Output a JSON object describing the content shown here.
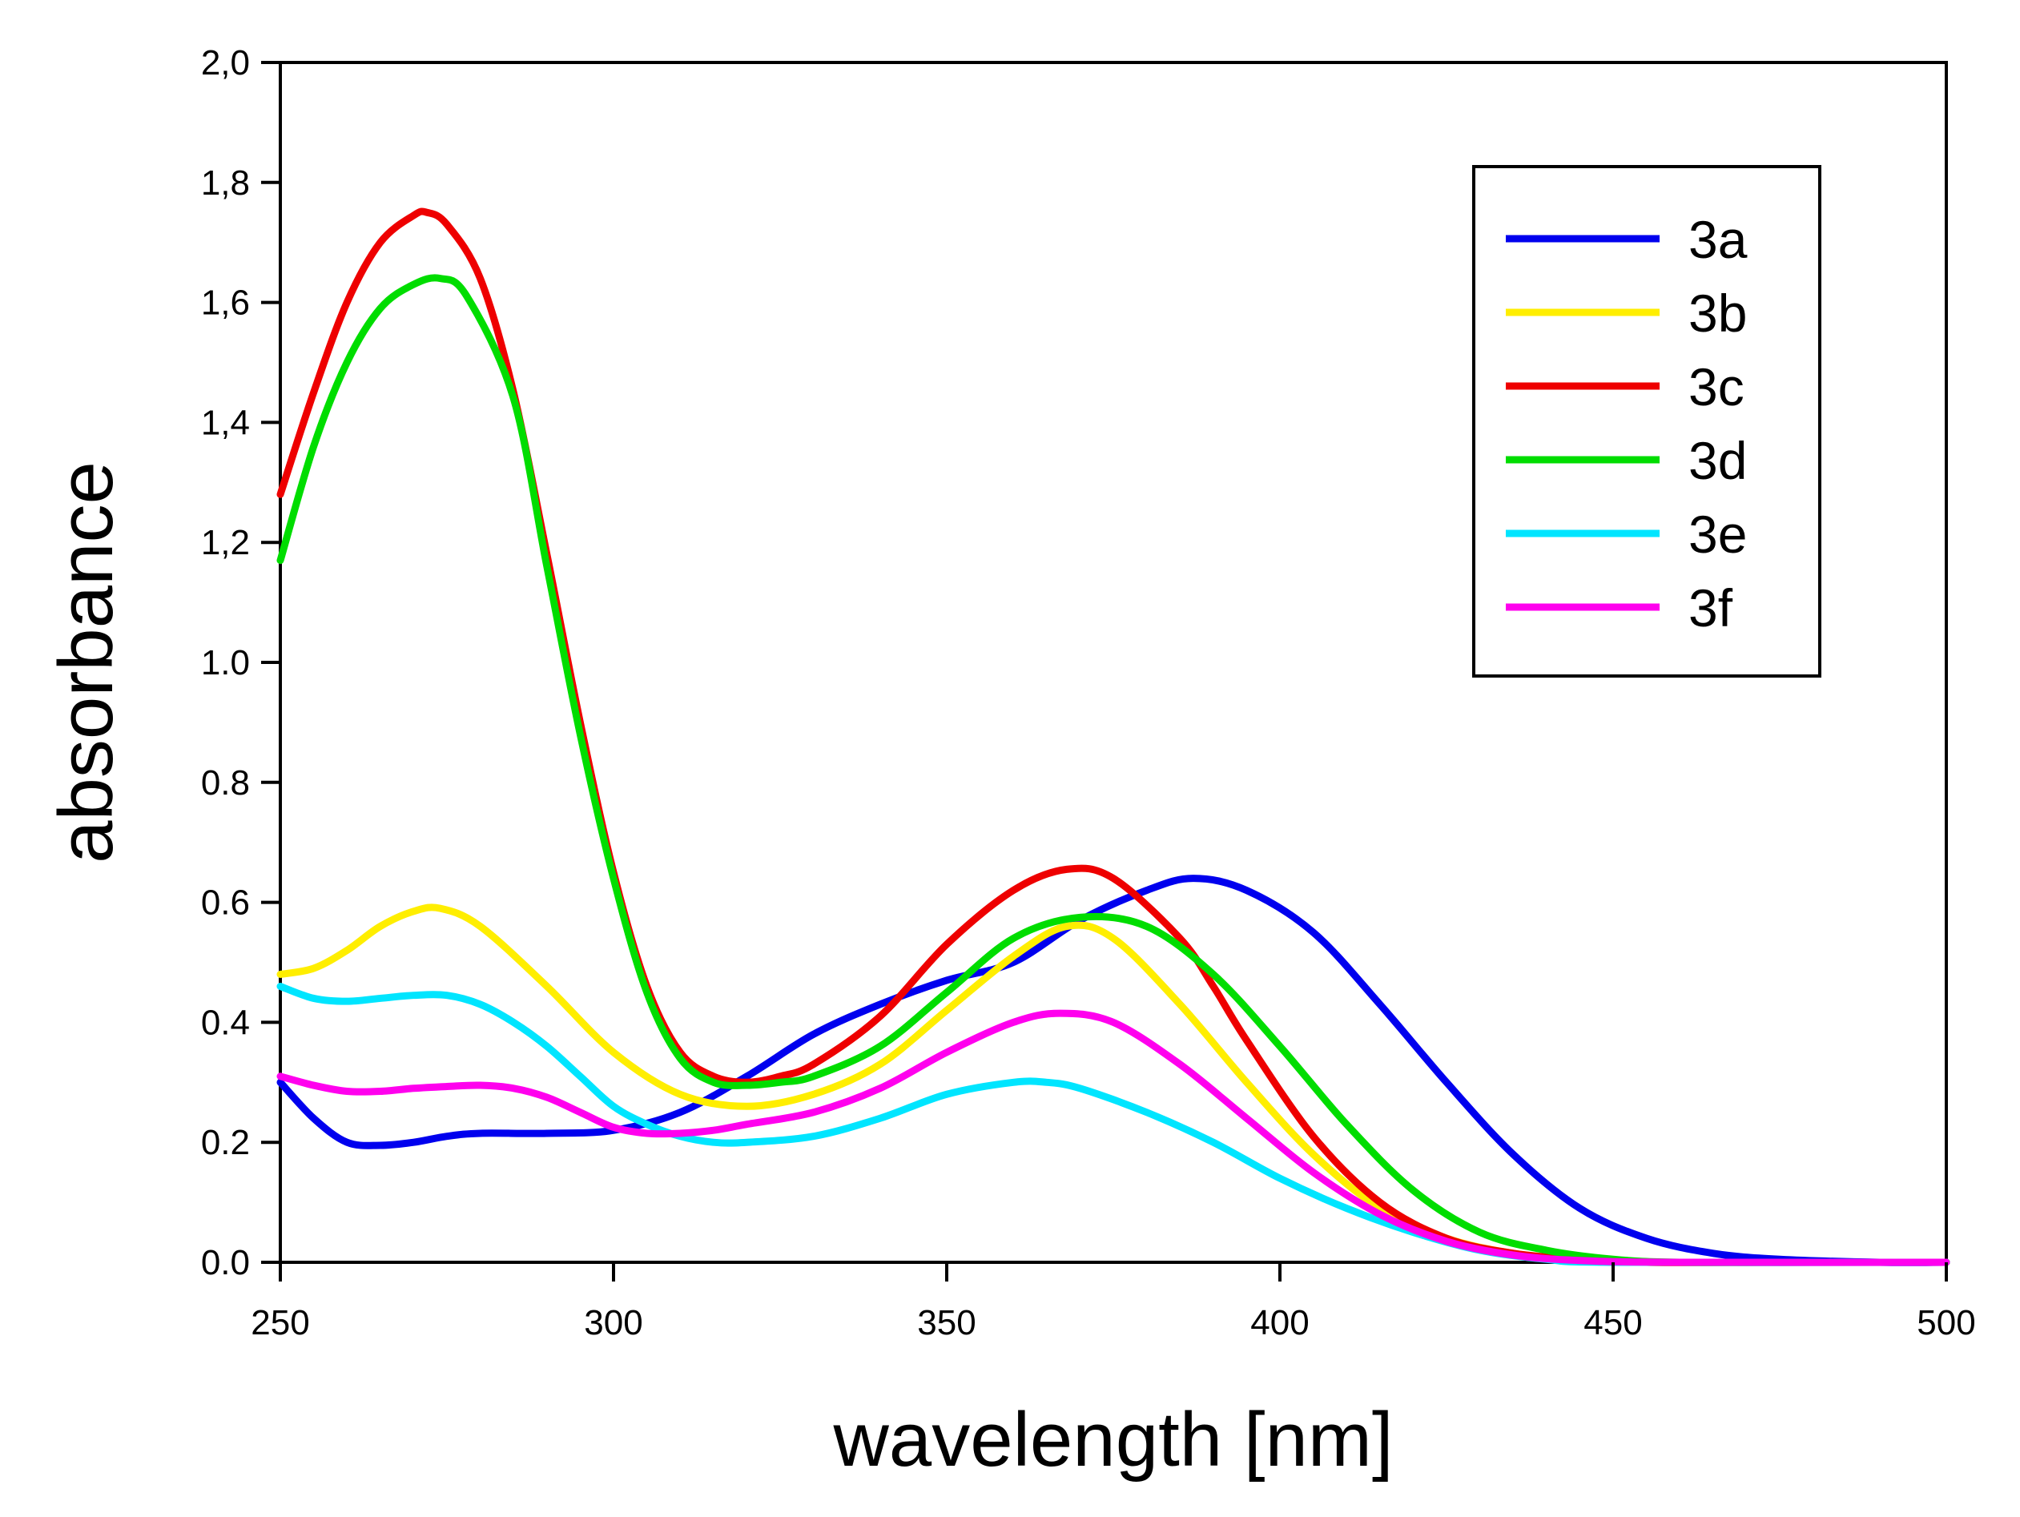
{
  "chart_data": {
    "type": "line",
    "title": "",
    "xlabel": "wavelength [nm]",
    "ylabel": "absorbance",
    "xlim": [
      250,
      500
    ],
    "ylim": [
      0.0,
      2.0
    ],
    "xticks": [
      250,
      300,
      350,
      400,
      450,
      500
    ],
    "xtick_labels": [
      "250",
      "300",
      "350",
      "400",
      "450",
      "500"
    ],
    "yticks": [
      0.0,
      0.2,
      0.4,
      0.6,
      0.8,
      1.0,
      1.2,
      1.4,
      1.6,
      1.8,
      2.0
    ],
    "ytick_labels": [
      "0.0",
      "0.2",
      "0.4",
      "0.6",
      "0.8",
      "1.0",
      "1,2",
      "1,4",
      "1,6",
      "1,8",
      "2,0"
    ],
    "grid": false,
    "legend_position": "top-right",
    "series": [
      {
        "name": "3a",
        "color": "#0000ee",
        "x": [
          250,
          255,
          260,
          265,
          270,
          275,
          280,
          290,
          300,
          310,
          320,
          330,
          340,
          350,
          360,
          370,
          380,
          387,
          395,
          405,
          415,
          425,
          435,
          445,
          455,
          465,
          475,
          490,
          500
        ],
        "y": [
          0.3,
          0.24,
          0.2,
          0.195,
          0.2,
          0.21,
          0.215,
          0.215,
          0.22,
          0.25,
          0.31,
          0.38,
          0.43,
          0.47,
          0.5,
          0.57,
          0.62,
          0.64,
          0.62,
          0.55,
          0.43,
          0.3,
          0.18,
          0.09,
          0.04,
          0.015,
          0.005,
          0.0,
          0.0
        ]
      },
      {
        "name": "3b",
        "color": "#ffee00",
        "x": [
          250,
          255,
          260,
          265,
          270,
          274,
          280,
          290,
          300,
          310,
          320,
          330,
          340,
          350,
          360,
          368,
          375,
          385,
          395,
          405,
          415,
          425,
          435,
          445,
          455,
          465,
          480,
          500
        ],
        "y": [
          0.48,
          0.49,
          0.52,
          0.56,
          0.585,
          0.59,
          0.56,
          0.46,
          0.35,
          0.28,
          0.26,
          0.28,
          0.33,
          0.42,
          0.51,
          0.56,
          0.54,
          0.43,
          0.3,
          0.18,
          0.09,
          0.04,
          0.015,
          0.005,
          0.0,
          0.0,
          0.0,
          0.0
        ]
      },
      {
        "name": "3c",
        "color": "#ee0000",
        "x": [
          250,
          255,
          260,
          265,
          270,
          272,
          275,
          280,
          285,
          290,
          295,
          300,
          305,
          310,
          315,
          320,
          325,
          330,
          340,
          350,
          360,
          368,
          375,
          385,
          390,
          395,
          405,
          415,
          425,
          435,
          445,
          455,
          470,
          500
        ],
        "y": [
          1.28,
          1.45,
          1.6,
          1.7,
          1.745,
          1.75,
          1.73,
          1.64,
          1.45,
          1.18,
          0.9,
          0.65,
          0.46,
          0.35,
          0.31,
          0.3,
          0.31,
          0.33,
          0.41,
          0.53,
          0.62,
          0.655,
          0.64,
          0.54,
          0.46,
          0.37,
          0.21,
          0.1,
          0.04,
          0.015,
          0.005,
          0.0,
          0.0,
          0.0
        ]
      },
      {
        "name": "3d",
        "color": "#00dd00",
        "x": [
          250,
          255,
          260,
          265,
          270,
          274,
          278,
          285,
          290,
          295,
          300,
          305,
          310,
          315,
          320,
          325,
          330,
          340,
          350,
          360,
          370,
          380,
          390,
          400,
          410,
          420,
          430,
          440,
          450,
          460,
          480,
          500
        ],
        "y": [
          1.17,
          1.36,
          1.5,
          1.59,
          1.63,
          1.64,
          1.61,
          1.44,
          1.16,
          0.88,
          0.64,
          0.45,
          0.34,
          0.3,
          0.295,
          0.3,
          0.31,
          0.36,
          0.45,
          0.54,
          0.575,
          0.56,
          0.48,
          0.36,
          0.23,
          0.12,
          0.05,
          0.02,
          0.005,
          0.0,
          0.0,
          0.0
        ]
      },
      {
        "name": "3e",
        "color": "#00e5ff",
        "x": [
          250,
          255,
          260,
          265,
          270,
          275,
          280,
          285,
          290,
          295,
          300,
          305,
          310,
          315,
          320,
          330,
          340,
          350,
          360,
          365,
          370,
          380,
          390,
          400,
          410,
          420,
          430,
          440,
          450,
          500
        ],
        "y": [
          0.46,
          0.44,
          0.435,
          0.44,
          0.445,
          0.445,
          0.43,
          0.4,
          0.36,
          0.31,
          0.26,
          0.23,
          0.21,
          0.2,
          0.2,
          0.21,
          0.24,
          0.28,
          0.3,
          0.3,
          0.29,
          0.25,
          0.2,
          0.14,
          0.09,
          0.05,
          0.02,
          0.005,
          0.0,
          0.0
        ]
      },
      {
        "name": "3f",
        "color": "#ff00ee",
        "x": [
          250,
          255,
          260,
          265,
          270,
          275,
          280,
          285,
          290,
          295,
          300,
          305,
          310,
          315,
          320,
          330,
          340,
          350,
          360,
          367,
          375,
          385,
          395,
          405,
          415,
          425,
          435,
          445,
          460,
          500
        ],
        "y": [
          0.31,
          0.295,
          0.285,
          0.285,
          0.29,
          0.293,
          0.295,
          0.29,
          0.275,
          0.25,
          0.225,
          0.215,
          0.215,
          0.22,
          0.23,
          0.25,
          0.29,
          0.35,
          0.4,
          0.415,
          0.4,
          0.33,
          0.24,
          0.15,
          0.08,
          0.035,
          0.012,
          0.003,
          0.0,
          0.0
        ]
      }
    ]
  }
}
